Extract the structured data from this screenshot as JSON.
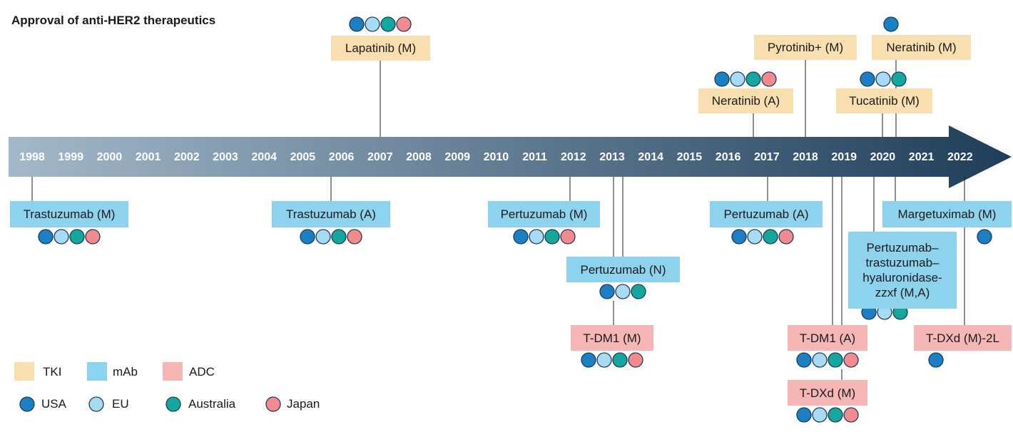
{
  "title": "Approval of anti-HER2 therapeutics",
  "years": [
    "1998",
    "1999",
    "2000",
    "2001",
    "2002",
    "2003",
    "2004",
    "2005",
    "2006",
    "2007",
    "2008",
    "2009",
    "2010",
    "2011",
    "2012",
    "2013",
    "2014",
    "2015",
    "2016",
    "2017",
    "2018",
    "2019",
    "2020",
    "2021",
    "2022"
  ],
  "events": [
    {
      "label": "Lapatinib (M)",
      "class": "TKI",
      "regions": [
        "USA",
        "EU",
        "Australia",
        "Japan"
      ]
    },
    {
      "label": "Neratinib (A)",
      "class": "TKI",
      "regions": [
        "USA",
        "EU",
        "Australia",
        "Japan"
      ]
    },
    {
      "label": "Pyrotinib+ (M)",
      "class": "TKI",
      "regions": []
    },
    {
      "label": "Neratinib (M)",
      "class": "TKI",
      "regions": [
        "USA"
      ]
    },
    {
      "label": "Tucatinib (M)",
      "class": "TKI",
      "regions": [
        "USA",
        "EU",
        "Australia"
      ]
    },
    {
      "label": "Trastuzumab (M)",
      "class": "mAb",
      "regions": [
        "USA",
        "EU",
        "Australia",
        "Japan"
      ]
    },
    {
      "label": "Trastuzumab (A)",
      "class": "mAb",
      "regions": [
        "USA",
        "EU",
        "Australia",
        "Japan"
      ]
    },
    {
      "label": "Pertuzumab (M)",
      "class": "mAb",
      "regions": [
        "USA",
        "EU",
        "Australia",
        "Japan"
      ]
    },
    {
      "label": "Pertuzumab (N)",
      "class": "mAb",
      "regions": [
        "USA",
        "EU",
        "Australia"
      ]
    },
    {
      "label": "T-DM1 (M)",
      "class": "ADC",
      "regions": [
        "USA",
        "EU",
        "Australia",
        "Japan"
      ]
    },
    {
      "label": "Pertuzumab (A)",
      "class": "mAb",
      "regions": [
        "USA",
        "EU",
        "Australia",
        "Japan"
      ]
    },
    {
      "label": "T-DM1 (A)",
      "class": "ADC",
      "regions": [
        "USA",
        "EU",
        "Australia",
        "Japan"
      ]
    },
    {
      "label": "T-DXd (M)",
      "class": "ADC",
      "regions": [
        "USA",
        "EU",
        "Australia",
        "Japan"
      ]
    },
    {
      "label": "Pertuzumab–trastuzumab–hyaluronidase-zzxf (M,A)",
      "class": "mAb",
      "regions": [
        "USA",
        "EU",
        "Australia"
      ]
    },
    {
      "label": "Margetuximab (M)",
      "class": "mAb",
      "regions": [
        "USA"
      ]
    },
    {
      "label": "T-DXd (M)-2L",
      "class": "ADC",
      "regions": [
        "USA"
      ]
    }
  ],
  "legend": {
    "classes": [
      {
        "name": "TKI",
        "color": "#f9dfb0"
      },
      {
        "name": "mAb",
        "color": "#8ed3ee"
      },
      {
        "name": "ADC",
        "color": "#f5b7b6"
      }
    ],
    "regions": [
      {
        "name": "USA",
        "color": "#1b7fc4"
      },
      {
        "name": "EU",
        "color": "#a6dbf3"
      },
      {
        "name": "Australia",
        "color": "#14a79d"
      },
      {
        "name": "Japan",
        "color": "#f28a8f"
      }
    ]
  }
}
